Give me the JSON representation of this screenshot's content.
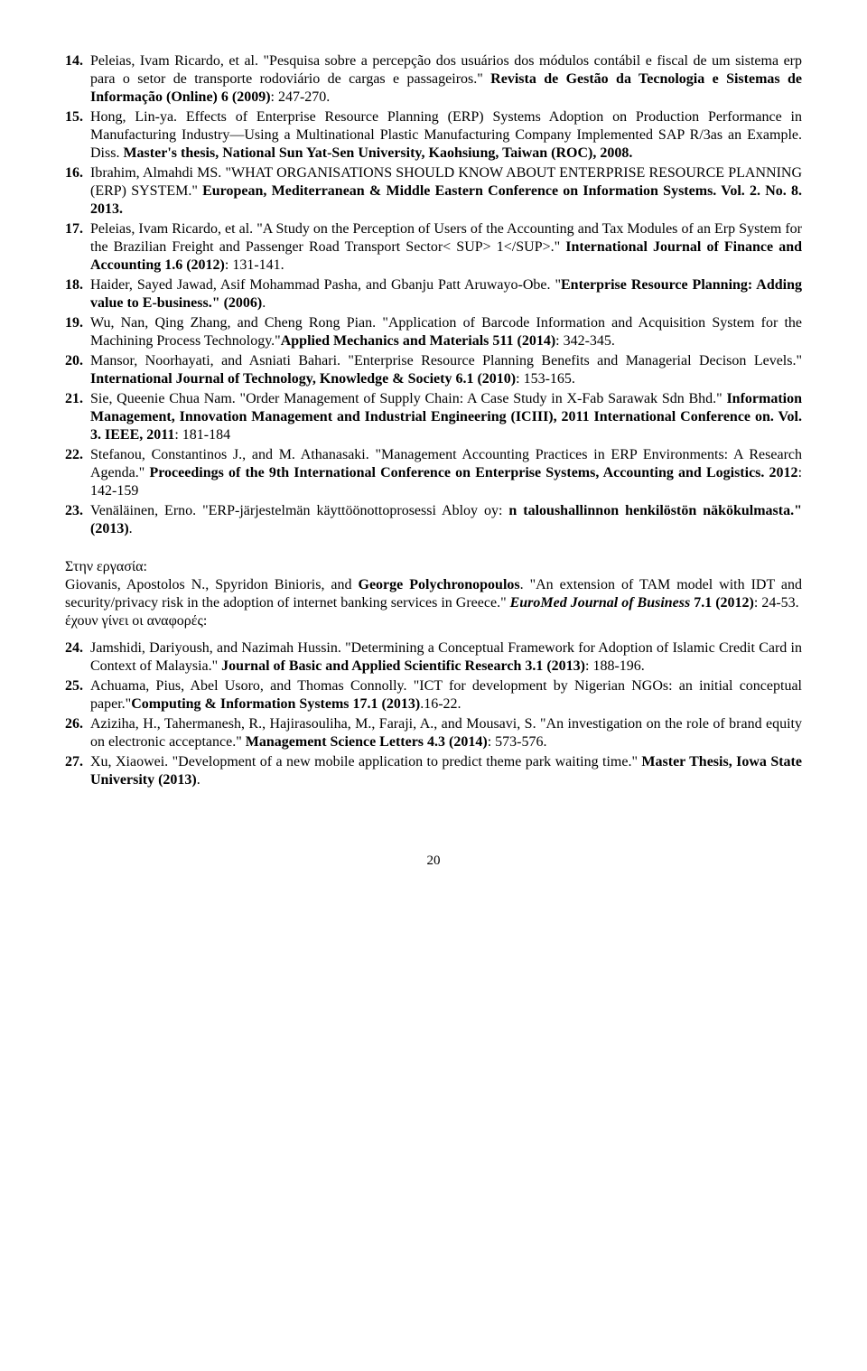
{
  "refs1": [
    {
      "n": "14.",
      "html": "Peleias, Ivam Ricardo, et al. \"Pesquisa sobre a percepção dos usuários dos módulos contábil e fiscal de um sistema erp para o setor de transporte rodoviário de cargas e passageiros.\" <b>Revista de Gestão da Tecnologia e Sistemas de Informação (Online) 6 (2009)</b>: 247-270."
    },
    {
      "n": "15.",
      "html": "Hong, Lin-ya. Effects of Enterprise Resource Planning (ERP) Systems Adoption on Production Performance in Manufacturing Industry—Using a Multinational Plastic Manufacturing Company Implemented SAP R/3as an Example. Diss. <b>Master's thesis, National Sun Yat-Sen University, Kaohsiung, Taiwan (ROC), 2008.</b>"
    },
    {
      "n": "16.",
      "html": "Ibrahim, Almahdi MS. \"WHAT ORGANISATIONS SHOULD KNOW ABOUT ENTERPRISE RESOURCE PLANNING (ERP) SYSTEM.\" <b>European, Mediterranean &amp; Middle Eastern Conference on Information Systems. Vol. 2. No. 8. 2013.</b>"
    },
    {
      "n": "17.",
      "html": "Peleias, Ivam Ricardo, et al. \"A Study on the Perception of Users of the Accounting and Tax Modules of an Erp System for the Brazilian Freight and Passenger Road Transport Sector&lt; SUP&gt; 1&lt;/SUP&gt;.\" <b>International Journal of Finance and Accounting 1.6 (2012)</b>: 131-141."
    },
    {
      "n": "18.",
      "html": "Haider, Sayed Jawad, Asif Mohammad Pasha, and Gbanju Patt Aruwayo-Obe. \"<b>Enterprise Resource Planning: Adding value to E-business.\" (2006)</b>."
    },
    {
      "n": "19.",
      "html": "Wu, Nan, Qing Zhang, and Cheng Rong Pian. \"Application of Barcode Information and Acquisition System for the Machining Process Technology.\"<b>Applied Mechanics and Materials 511 (2014)</b>: 342-345."
    },
    {
      "n": "20.",
      "html": "Mansor, Noorhayati, and Asniati Bahari. \"Enterprise Resource Planning Benefits and Managerial Decison Levels.\" <b>International Journal of Technology, Knowledge &amp; Society 6.1 (2010)</b>: 153-165."
    },
    {
      "n": "21.",
      "html": "Sie, Queenie Chua Nam. \"Order Management of Supply Chain: A Case Study in X-Fab Sarawak Sdn Bhd.\" <b>Information Management, Innovation Management and Industrial Engineering (ICIII), 2011 International Conference on. Vol. 3. IEEE, 2011</b>: 181-184"
    },
    {
      "n": "22.",
      "html": "Stefanou, Constantinos J., and M. Athanasaki. \"Management Accounting Practices in ERP Environments: A Research Agenda.\" <b>Proceedings of the 9th International Conference on Enterprise Systems, Accounting and Logistics. 2012</b>: 142-159"
    },
    {
      "n": "23.",
      "html": "Venäläinen, Erno. \"ERP-järjestelmän käyttöönottoprosessi Abloy oy: <b>n taloushallinnon henkilöstön näkökulmasta.\" (2013)</b>."
    }
  ],
  "mid": {
    "line1": "Στην εργασία:",
    "line2_html": "Giovanis, Apostolos N., Spyridon Binioris, and <b>George Polychronopoulos</b>. \"An extension of TAM model with IDT and security/privacy risk in the adoption of internet banking services in Greece.\" <b><i>EuroMed Journal of Business</i> 7.1 (2012)</b>: 24-53.",
    "line3": "έχουν γίνει οι αναφορές:"
  },
  "refs2": [
    {
      "n": "24.",
      "html": "Jamshidi, Dariyoush, and Nazimah Hussin. \"Determining a Conceptual Framework for Adoption of Islamic Credit Card in Context of Malaysia.\" <b>Journal of Basic and Applied Scientific Research 3.1 (2013)</b>: 188-196."
    },
    {
      "n": "25.",
      "html": "Achuama, Pius, Abel Usoro, and Thomas Connolly. \"ICT for development by Nigerian NGOs: an initial conceptual paper.\"<b>Computing &amp; Information Systems 17.1 (2013)</b>.16-22."
    },
    {
      "n": "26.",
      "html": "Aziziha, H., Tahermanesh, R., Hajirasouliha, M., Faraji, A., and Mousavi, S. \"An investigation on the role of brand equity on electronic acceptance.\" <b>Management Science Letters 4.3 (2014)</b>: 573-576."
    },
    {
      "n": "27.",
      "html": "Xu, Xiaowei. \"Development of a new mobile application to predict theme park waiting time.\" <b>Master Thesis, Iowa State University (2013)</b>."
    }
  ],
  "page_number": "20"
}
